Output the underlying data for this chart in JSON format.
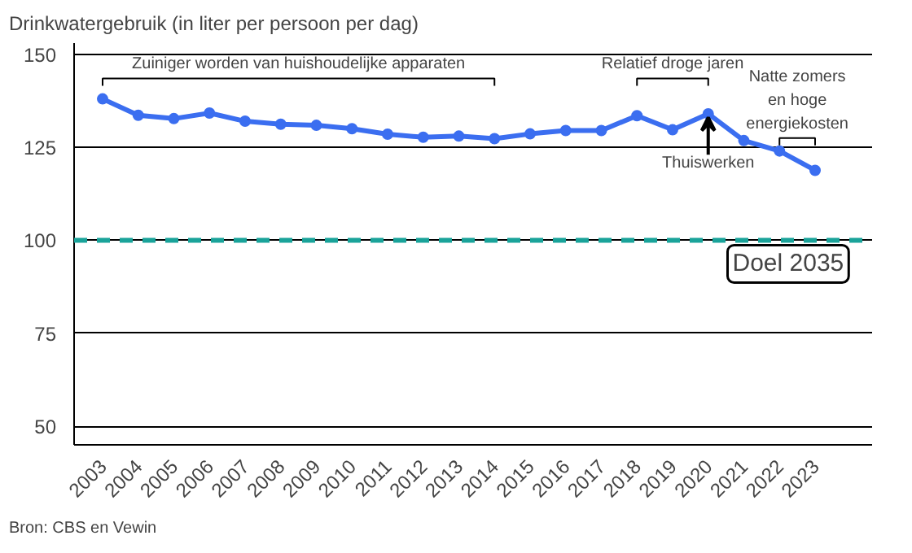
{
  "chart_data": {
    "type": "line",
    "title": "Drinkwatergebruik (in liter per persoon per dag)",
    "categories": [
      "2003",
      "2004",
      "2005",
      "2006",
      "2007",
      "2008",
      "2009",
      "2010",
      "2011",
      "2012",
      "2013",
      "2014",
      "2015",
      "2016",
      "2017",
      "2018",
      "2019",
      "2020",
      "2021",
      "2022",
      "2023"
    ],
    "series": [
      {
        "color": "#3b6ef0",
        "values": [
          138,
          133.6,
          132.7,
          134.2,
          132,
          131.2,
          130.9,
          130,
          128.5,
          127.7,
          128,
          127.3,
          128.6,
          129.5,
          129.5,
          133.5,
          129.7,
          134,
          126.8,
          124,
          118.8
        ]
      }
    ],
    "ylim": [
      45,
      153
    ],
    "yticks": [
      50,
      75,
      100,
      125,
      150
    ],
    "grid": "y",
    "marker": "circle",
    "line_style": "solid",
    "ref_lines": [
      {
        "axis": "y",
        "value": 100,
        "label": "Doel 2035",
        "color": "#1aa39a",
        "line_style": "dashed"
      }
    ],
    "annotations": [
      "Zuiniger worden van huishoudelijke apparaten",
      "Relatief droge jaren",
      "Natte zomers\nen hoge\nenergiekosten",
      {
        "text": "Thuiswerken",
        "x": "2020",
        "y": 134
      },
      "Bron: CBS en Vewin"
    ]
  }
}
